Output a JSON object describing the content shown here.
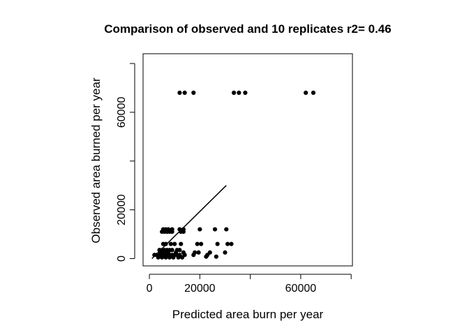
{
  "chart_data": {
    "type": "scatter",
    "title": "Comparison of observed and 10 replicates r2= 0.46",
    "xlabel": "Predicted area burn per year",
    "ylabel": "Observed area burned per year",
    "xlim": [
      -2500,
      80500
    ],
    "ylim": [
      -3000,
      84000
    ],
    "x_ticks": [
      0,
      20000,
      40000,
      60000,
      80000
    ],
    "x_tick_labels": [
      "0",
      "20000",
      "",
      "60000",
      ""
    ],
    "y_ticks": [
      0,
      20000,
      40000,
      60000,
      80000
    ],
    "y_tick_labels": [
      "0",
      "20000",
      "",
      "60000",
      ""
    ],
    "grid": false,
    "point_color": "#000000",
    "points": [
      {
        "x": 12000,
        "y": 68000
      },
      {
        "x": 14000,
        "y": 68000
      },
      {
        "x": 17500,
        "y": 68000
      },
      {
        "x": 33500,
        "y": 68000
      },
      {
        "x": 35500,
        "y": 68000
      },
      {
        "x": 38000,
        "y": 68000
      },
      {
        "x": 62000,
        "y": 68000
      },
      {
        "x": 65000,
        "y": 68000
      },
      {
        "x": 5000,
        "y": 11000
      },
      {
        "x": 6000,
        "y": 11000
      },
      {
        "x": 7000,
        "y": 11000
      },
      {
        "x": 8000,
        "y": 11000
      },
      {
        "x": 9000,
        "y": 11000
      },
      {
        "x": 5500,
        "y": 12000
      },
      {
        "x": 6500,
        "y": 12000
      },
      {
        "x": 7500,
        "y": 12000
      },
      {
        "x": 9000,
        "y": 12000
      },
      {
        "x": 12500,
        "y": 11000
      },
      {
        "x": 13500,
        "y": 11000
      },
      {
        "x": 12000,
        "y": 12000
      },
      {
        "x": 13500,
        "y": 12000
      },
      {
        "x": 20000,
        "y": 12000
      },
      {
        "x": 26000,
        "y": 12000
      },
      {
        "x": 30500,
        "y": 12000
      },
      {
        "x": 5500,
        "y": 6000
      },
      {
        "x": 6500,
        "y": 6000
      },
      {
        "x": 8500,
        "y": 6000
      },
      {
        "x": 10000,
        "y": 6000
      },
      {
        "x": 12500,
        "y": 6000
      },
      {
        "x": 19000,
        "y": 6000
      },
      {
        "x": 20500,
        "y": 6000
      },
      {
        "x": 27000,
        "y": 6000
      },
      {
        "x": 31000,
        "y": 6000
      },
      {
        "x": 32500,
        "y": 6000
      },
      {
        "x": 4000,
        "y": 3500
      },
      {
        "x": 5000,
        "y": 3500
      },
      {
        "x": 6000,
        "y": 3500
      },
      {
        "x": 7000,
        "y": 3500
      },
      {
        "x": 8000,
        "y": 3500
      },
      {
        "x": 9000,
        "y": 3500
      },
      {
        "x": 11000,
        "y": 3500
      },
      {
        "x": 12000,
        "y": 3500
      },
      {
        "x": 4500,
        "y": 2500
      },
      {
        "x": 5500,
        "y": 2500
      },
      {
        "x": 6500,
        "y": 2500
      },
      {
        "x": 7500,
        "y": 2500
      },
      {
        "x": 10500,
        "y": 2500
      },
      {
        "x": 13500,
        "y": 2500
      },
      {
        "x": 18000,
        "y": 2500
      },
      {
        "x": 19500,
        "y": 2500
      },
      {
        "x": 24000,
        "y": 2500
      },
      {
        "x": 30000,
        "y": 2500
      },
      {
        "x": 2000,
        "y": 1500
      },
      {
        "x": 3000,
        "y": 1500
      },
      {
        "x": 4000,
        "y": 1500
      },
      {
        "x": 5000,
        "y": 1500
      },
      {
        "x": 6000,
        "y": 1500
      },
      {
        "x": 7000,
        "y": 1500
      },
      {
        "x": 8000,
        "y": 1500
      },
      {
        "x": 9000,
        "y": 1500
      },
      {
        "x": 10000,
        "y": 1500
      },
      {
        "x": 11000,
        "y": 1500
      },
      {
        "x": 12000,
        "y": 1500
      },
      {
        "x": 14000,
        "y": 1500
      },
      {
        "x": 17500,
        "y": 1500
      },
      {
        "x": 23000,
        "y": 1500
      },
      {
        "x": 3500,
        "y": 500
      },
      {
        "x": 5000,
        "y": 500
      },
      {
        "x": 6500,
        "y": 500
      },
      {
        "x": 8000,
        "y": 500
      },
      {
        "x": 9500,
        "y": 500
      },
      {
        "x": 11500,
        "y": 500
      },
      {
        "x": 13000,
        "y": 500
      },
      {
        "x": 22500,
        "y": 800
      },
      {
        "x": 26500,
        "y": 800
      }
    ],
    "fit_line": {
      "x": [
        1000,
        30500
      ],
      "y": [
        0,
        30000
      ]
    }
  }
}
